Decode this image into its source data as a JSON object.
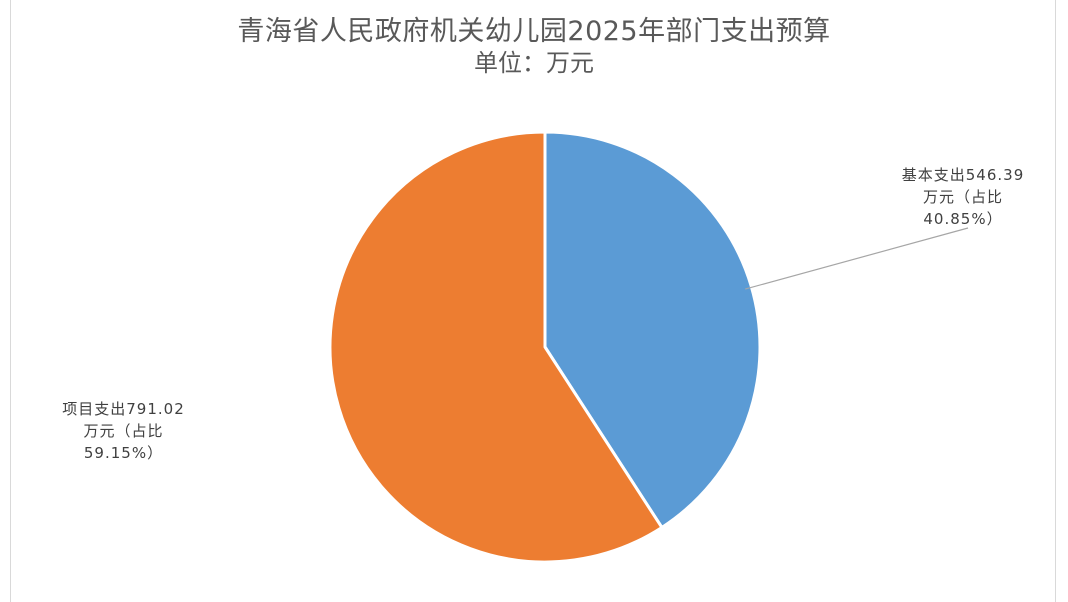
{
  "chart_data": {
    "type": "pie",
    "title": "青海省人民政府机关幼儿园2025年部门支出预算",
    "subtitle": "单位：万元",
    "slices": [
      {
        "name": "基本支出",
        "value": 546.39,
        "percent": 40.85,
        "color": "#5b9bd5",
        "label_lines": [
          "基本支出546.39",
          "万元（占比",
          "40.85%）"
        ]
      },
      {
        "name": "项目支出",
        "value": 791.02,
        "percent": 59.15,
        "color": "#ed7d31",
        "label_lines": [
          "项目支出791.02",
          "万元（占比",
          "59.15%）"
        ]
      }
    ],
    "start_angle_deg": 0,
    "direction": "clockwise",
    "slice_border_color": "#ffffff",
    "leader_line_color": "#a6a6a6",
    "legend": "none"
  }
}
